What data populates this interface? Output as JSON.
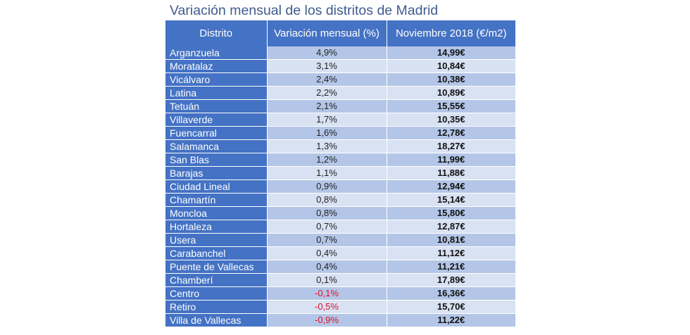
{
  "title": "Variación mensual de los distritos de Madrid",
  "headers": {
    "distrito": "Distrito",
    "variacion": "Variación mensual (%)",
    "precio": "Noviembre 2018 (€/m2)"
  },
  "colors": {
    "header": "#4472c4",
    "row_odd": "#b4c6e7",
    "row_even": "#d9e2f3",
    "negative": "#e0102a",
    "title": "#3f5b8f"
  },
  "rows": [
    {
      "distrito": "Arganzuela",
      "variacion": "4,9%",
      "precio": "14,99€"
    },
    {
      "distrito": "Moratalaz",
      "variacion": "3,1%",
      "precio": "10,84€"
    },
    {
      "distrito": "Vicálvaro",
      "variacion": "2,4%",
      "precio": "10,38€"
    },
    {
      "distrito": "Latina",
      "variacion": "2,2%",
      "precio": "10,89€"
    },
    {
      "distrito": "Tetuán",
      "variacion": "2,1%",
      "precio": "15,55€"
    },
    {
      "distrito": "Villaverde",
      "variacion": "1,7%",
      "precio": "10,35€"
    },
    {
      "distrito": "Fuencarral",
      "variacion": "1,6%",
      "precio": "12,78€"
    },
    {
      "distrito": "Salamanca",
      "variacion": "1,3%",
      "precio": "18,27€"
    },
    {
      "distrito": "San Blas",
      "variacion": "1,2%",
      "precio": "11,99€"
    },
    {
      "distrito": "Barajas",
      "variacion": "1,1%",
      "precio": "11,88€"
    },
    {
      "distrito": "Ciudad Lineal",
      "variacion": "0,9%",
      "precio": "12,94€"
    },
    {
      "distrito": "Chamartín",
      "variacion": "0,8%",
      "precio": "15,14€"
    },
    {
      "distrito": "Moncloa",
      "variacion": "0,8%",
      "precio": "15,80€"
    },
    {
      "distrito": "Hortaleza",
      "variacion": "0,7%",
      "precio": "12,87€"
    },
    {
      "distrito": "Usera",
      "variacion": "0,7%",
      "precio": "10,81€"
    },
    {
      "distrito": "Carabanchel",
      "variacion": "0,4%",
      "precio": "11,12€"
    },
    {
      "distrito": "Puente de Vallecas",
      "variacion": "0,4%",
      "precio": "11,21€"
    },
    {
      "distrito": "Chamberí",
      "variacion": "0,1%",
      "precio": "17,89€"
    },
    {
      "distrito": "Centro",
      "variacion": "-0,1%",
      "precio": "16,36€",
      "negative": true
    },
    {
      "distrito": "Retiro",
      "variacion": "-0,5%",
      "precio": "15,70€",
      "negative": true
    },
    {
      "distrito": "Villa de Vallecas",
      "variacion": "-0,9%",
      "precio": "11,22€",
      "negative": true
    }
  ]
}
